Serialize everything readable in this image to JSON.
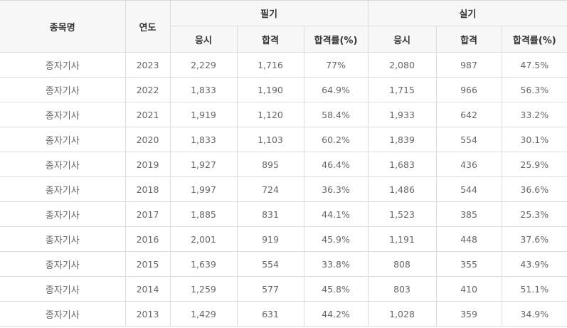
{
  "table": {
    "headers": {
      "name": "종목명",
      "year": "연도",
      "written_group": "필기",
      "practical_group": "실기",
      "written_sub": [
        "응시",
        "합격",
        "합격률(%)"
      ],
      "practical_sub": [
        "응시",
        "합격",
        "합격률(%)"
      ]
    },
    "rows": [
      {
        "name": "종자기사",
        "year": "2023",
        "w_apply": "2,229",
        "w_pass": "1,716",
        "w_rate": "77%",
        "p_apply": "2,080",
        "p_pass": "987",
        "p_rate": "47.5%"
      },
      {
        "name": "종자기사",
        "year": "2022",
        "w_apply": "1,833",
        "w_pass": "1,190",
        "w_rate": "64.9%",
        "p_apply": "1,715",
        "p_pass": "966",
        "p_rate": "56.3%"
      },
      {
        "name": "종자기사",
        "year": "2021",
        "w_apply": "1,919",
        "w_pass": "1,120",
        "w_rate": "58.4%",
        "p_apply": "1,933",
        "p_pass": "642",
        "p_rate": "33.2%"
      },
      {
        "name": "종자기사",
        "year": "2020",
        "w_apply": "1,833",
        "w_pass": "1,103",
        "w_rate": "60.2%",
        "p_apply": "1,839",
        "p_pass": "554",
        "p_rate": "30.1%"
      },
      {
        "name": "종자기사",
        "year": "2019",
        "w_apply": "1,927",
        "w_pass": "895",
        "w_rate": "46.4%",
        "p_apply": "1,683",
        "p_pass": "436",
        "p_rate": "25.9%"
      },
      {
        "name": "종자기사",
        "year": "2018",
        "w_apply": "1,997",
        "w_pass": "724",
        "w_rate": "36.3%",
        "p_apply": "1,486",
        "p_pass": "544",
        "p_rate": "36.6%"
      },
      {
        "name": "종자기사",
        "year": "2017",
        "w_apply": "1,885",
        "w_pass": "831",
        "w_rate": "44.1%",
        "p_apply": "1,523",
        "p_pass": "385",
        "p_rate": "25.3%"
      },
      {
        "name": "종자기사",
        "year": "2016",
        "w_apply": "2,001",
        "w_pass": "919",
        "w_rate": "45.9%",
        "p_apply": "1,191",
        "p_pass": "448",
        "p_rate": "37.6%"
      },
      {
        "name": "종자기사",
        "year": "2015",
        "w_apply": "1,639",
        "w_pass": "554",
        "w_rate": "33.8%",
        "p_apply": "808",
        "p_pass": "355",
        "p_rate": "43.9%"
      },
      {
        "name": "종자기사",
        "year": "2014",
        "w_apply": "1,259",
        "w_pass": "577",
        "w_rate": "45.8%",
        "p_apply": "803",
        "p_pass": "410",
        "p_rate": "51.1%"
      },
      {
        "name": "종자기사",
        "year": "2013",
        "w_apply": "1,429",
        "w_pass": "631",
        "w_rate": "44.2%",
        "p_apply": "1,028",
        "p_pass": "359",
        "p_rate": "34.9%"
      }
    ]
  }
}
